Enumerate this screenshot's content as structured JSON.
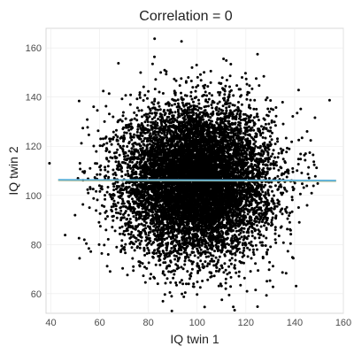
{
  "chart_data": {
    "type": "scatter",
    "title": "Correlation = 0",
    "xlabel": "IQ twin 1",
    "ylabel": "IQ twin 2",
    "xlim": [
      38,
      160
    ],
    "ylim": [
      52,
      168
    ],
    "xticks": [
      40,
      60,
      80,
      100,
      120,
      140,
      160
    ],
    "yticks": [
      60,
      80,
      100,
      120,
      140,
      160
    ],
    "grid": true,
    "point_color": "#000000",
    "point_count": 10000,
    "distribution": {
      "x_mean": 100,
      "x_sd": 15,
      "y_mean": 106,
      "y_sd": 15,
      "correlation": 0
    },
    "fit_lines": [
      {
        "x": [
          43,
          157
        ],
        "y": [
          106.2,
          105.9
        ],
        "color": "#e69f00"
      },
      {
        "x": [
          43,
          157
        ],
        "y": [
          106.3,
          106.0
        ],
        "color": "#56b4e9"
      }
    ]
  }
}
